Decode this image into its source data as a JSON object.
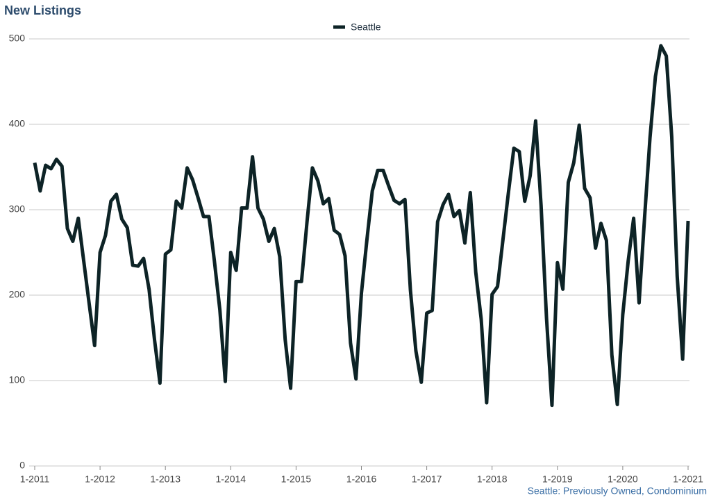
{
  "chart_data": {
    "type": "line",
    "title": "New Listings",
    "footnote": "Seattle: Previously Owned, Condominium",
    "categories": [
      "1-2011",
      null,
      null,
      null,
      null,
      null,
      null,
      null,
      null,
      null,
      null,
      null,
      "1-2012",
      null,
      null,
      null,
      null,
      null,
      null,
      null,
      null,
      null,
      null,
      null,
      "1-2013",
      null,
      null,
      null,
      null,
      null,
      null,
      null,
      null,
      null,
      null,
      null,
      "1-2014",
      null,
      null,
      null,
      null,
      null,
      null,
      null,
      null,
      null,
      null,
      null,
      "1-2015",
      null,
      null,
      null,
      null,
      null,
      null,
      null,
      null,
      null,
      null,
      null,
      "1-2016",
      null,
      null,
      null,
      null,
      null,
      null,
      null,
      null,
      null,
      null,
      null,
      "1-2017",
      null,
      null,
      null,
      null,
      null,
      null,
      null,
      null,
      null,
      null,
      null,
      "1-2018",
      null,
      null,
      null,
      null,
      null,
      null,
      null,
      null,
      null,
      null,
      null,
      "1-2019",
      null,
      null,
      null,
      null,
      null,
      null,
      null,
      null,
      null,
      null,
      null,
      "1-2020",
      null,
      null,
      null,
      null,
      null,
      null,
      null,
      null,
      null,
      null,
      null,
      "1-2021"
    ],
    "series": [
      {
        "name": "Seattle",
        "color": "#0d2326",
        "values": [
          355,
          322,
          352,
          348,
          359,
          351,
          278,
          263,
          290,
          240,
          190,
          141,
          250,
          270,
          310,
          318,
          289,
          279,
          235,
          234,
          243,
          207,
          148,
          97,
          248,
          253,
          310,
          302,
          349,
          335,
          314,
          292,
          292,
          240,
          183,
          99,
          250,
          229,
          302,
          302,
          362,
          302,
          289,
          263,
          278,
          245,
          148,
          91,
          216,
          216,
          285,
          349,
          334,
          307,
          313,
          276,
          271,
          246,
          144,
          102,
          202,
          264,
          322,
          346,
          346,
          328,
          311,
          307,
          312,
          206,
          135,
          98,
          179,
          182,
          286,
          306,
          318,
          292,
          299,
          261,
          320,
          227,
          172,
          74,
          201,
          210,
          265,
          320,
          372,
          368,
          310,
          340,
          404,
          305,
          173,
          71,
          238,
          207,
          332,
          355,
          399,
          325,
          314,
          255,
          284,
          264,
          130,
          72,
          177,
          240,
          290,
          191,
          290,
          384,
          456,
          492,
          480,
          385,
          222,
          125,
          287
        ]
      }
    ],
    "ylim": [
      0,
      500
    ],
    "yticks": [
      0,
      100,
      200,
      300,
      400,
      500
    ],
    "grid": true,
    "legend": "top"
  }
}
